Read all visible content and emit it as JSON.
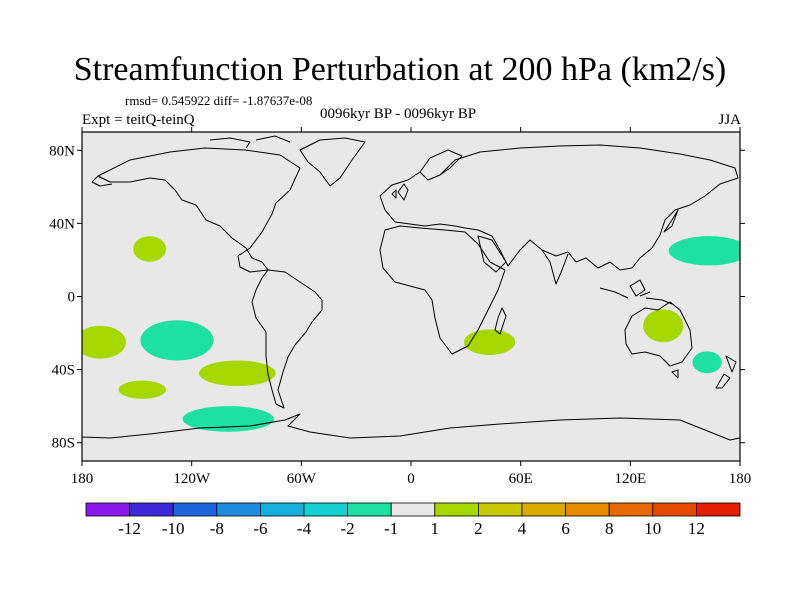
{
  "header": {
    "title": "Streamfunction Perturbation at 200 hPa (km2/s)",
    "stats": "rmsd= 0.545922 diff= -1.87637e-08",
    "experiment": "Expt = teitQ-teinQ",
    "period": "0096kyr BP - 0096kyr BP",
    "season": "JJA"
  },
  "map": {
    "background_color": "#e8e8e8",
    "lat_ticks": [
      {
        "lat": 80,
        "label": "80N"
      },
      {
        "lat": 40,
        "label": "40N"
      },
      {
        "lat": 0,
        "label": "0"
      },
      {
        "lat": -40,
        "label": "40S"
      },
      {
        "lat": -80,
        "label": "80S"
      }
    ],
    "lon_ticks": [
      {
        "lon": -180,
        "label": "180"
      },
      {
        "lon": -120,
        "label": "120W"
      },
      {
        "lon": -60,
        "label": "60W"
      },
      {
        "lon": 0,
        "label": "0"
      },
      {
        "lon": 60,
        "label": "60E"
      },
      {
        "lon": 120,
        "label": "120E"
      },
      {
        "lon": 180,
        "label": "180"
      }
    ],
    "anomalies": [
      {
        "name": "n-pacific-positive",
        "lon": -143,
        "lat": 26,
        "rlon": 9,
        "rlat": 7,
        "color": "#a6d800"
      },
      {
        "name": "s-pacific-west-positive",
        "lon": -170,
        "lat": -25,
        "rlon": 14,
        "rlat": 9,
        "color": "#a6d800"
      },
      {
        "name": "s-pacific-central-negative",
        "lon": -128,
        "lat": -24,
        "rlon": 20,
        "rlat": 11,
        "color": "#1ee0a0"
      },
      {
        "name": "s-pacific-south-positive",
        "lon": -147,
        "lat": -51,
        "rlon": 13,
        "rlat": 5,
        "color": "#a6d800"
      },
      {
        "name": "se-pacific-positive",
        "lon": -95,
        "lat": -42,
        "rlon": 21,
        "rlat": 7,
        "color": "#a6d800"
      },
      {
        "name": "southern-ocean-negative",
        "lon": -100,
        "lat": -67,
        "rlon": 25,
        "rlat": 7,
        "color": "#1ee0a0"
      },
      {
        "name": "s-indian-positive",
        "lon": 43,
        "lat": -25,
        "rlon": 14,
        "rlat": 7,
        "color": "#a6d800"
      },
      {
        "name": "australia-positive",
        "lon": 138,
        "lat": -16,
        "rlon": 11,
        "rlat": 9,
        "color": "#a6d800"
      },
      {
        "name": "nw-pacific-negative",
        "lon": 163,
        "lat": 25,
        "rlon": 22,
        "rlat": 8,
        "color": "#1ee0a0"
      },
      {
        "name": "tasman-sea-negative",
        "lon": 162,
        "lat": -36,
        "rlon": 8,
        "rlat": 6,
        "color": "#1ee0a0"
      }
    ]
  },
  "colorbar": {
    "colors": [
      "#8c19eb",
      "#3c28d7",
      "#1e64dc",
      "#1e8cdc",
      "#14afdc",
      "#14d2d2",
      "#1ee0a0",
      "#e8e8e8",
      "#a6d800",
      "#c8c800",
      "#dcaa00",
      "#e68a00",
      "#e66a00",
      "#e64a00",
      "#e61e00"
    ],
    "labels": [
      "-12",
      "-10",
      "-8",
      "-6",
      "-4",
      "-2",
      "-1",
      "1",
      "2",
      "4",
      "6",
      "8",
      "10",
      "12"
    ]
  }
}
